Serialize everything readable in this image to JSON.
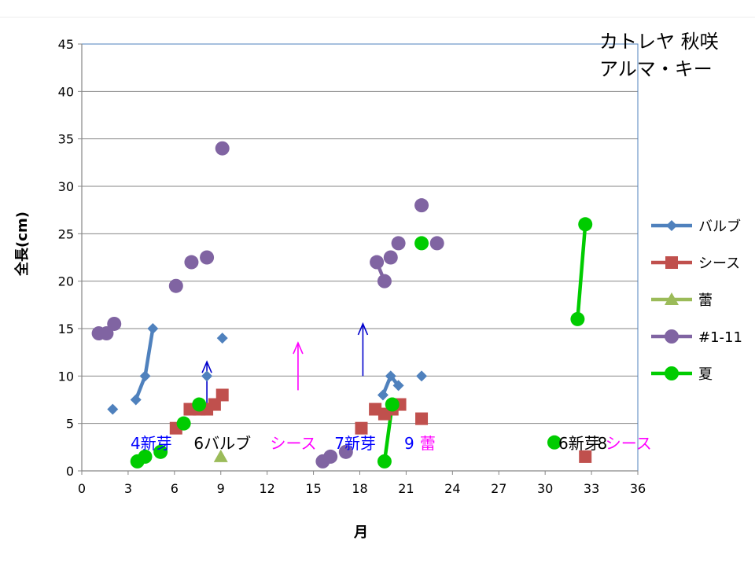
{
  "chart_data": {
    "type": "scatter",
    "title_lines": [
      "カトレヤ  秋咲",
      "アルマ・キー"
    ],
    "xlabel": "月",
    "ylabel": "全長(cm)",
    "xlim": [
      0,
      36
    ],
    "ylim": [
      0,
      45
    ],
    "x_ticks": [
      0,
      3,
      6,
      9,
      12,
      15,
      18,
      21,
      24,
      27,
      30,
      33,
      36
    ],
    "y_ticks": [
      0,
      5,
      10,
      15,
      20,
      25,
      30,
      35,
      40,
      45
    ],
    "grid": "horizontal",
    "legend_position": "right",
    "series": [
      {
        "name": "バルブ",
        "marker": "diamond",
        "color": "#4F81BD",
        "points": [
          [
            2,
            6.5
          ],
          [
            3.5,
            7.5
          ],
          [
            4.1,
            10
          ],
          [
            4.6,
            15
          ],
          [
            8.1,
            10
          ],
          [
            9.1,
            14
          ],
          [
            19.5,
            8
          ],
          [
            20,
            10
          ],
          [
            20.5,
            9
          ],
          [
            22,
            10
          ]
        ],
        "lines": [
          [
            1,
            2,
            3
          ],
          [
            6,
            7,
            8
          ]
        ]
      },
      {
        "name": "シース",
        "marker": "square",
        "color": "#C0504D",
        "points": [
          [
            6.1,
            4.5
          ],
          [
            7,
            6.5
          ],
          [
            7.6,
            6.5
          ],
          [
            8.1,
            6.5
          ],
          [
            8.6,
            7
          ],
          [
            9.1,
            8
          ],
          [
            18.1,
            4.5
          ],
          [
            19,
            6.5
          ],
          [
            19.6,
            6
          ],
          [
            20.1,
            6.5
          ],
          [
            20.6,
            7
          ],
          [
            22,
            5.5
          ],
          [
            32.6,
            1.5
          ]
        ],
        "lines": []
      },
      {
        "name": "蕾",
        "marker": "triangle",
        "color": "#9BBB59",
        "points": [
          [
            9,
            1.5
          ]
        ],
        "lines": []
      },
      {
        "name": "#1-11",
        "marker": "circle",
        "color": "#8064A2",
        "points": [
          [
            1.1,
            14.5
          ],
          [
            1.6,
            14.5
          ],
          [
            2.1,
            15.5
          ],
          [
            6.1,
            19.5
          ],
          [
            7.1,
            22
          ],
          [
            8.1,
            22.5
          ],
          [
            9.1,
            34
          ],
          [
            15.6,
            1
          ],
          [
            16.1,
            1.5
          ],
          [
            17.1,
            2
          ],
          [
            19.1,
            22
          ],
          [
            19.6,
            20
          ],
          [
            20,
            22.5
          ],
          [
            20.5,
            24
          ],
          [
            22,
            28
          ],
          [
            23,
            24
          ]
        ],
        "lines": [
          [
            10,
            11
          ]
        ]
      },
      {
        "name": "夏",
        "marker": "circle",
        "color": "#00CC00",
        "points": [
          [
            3.6,
            1
          ],
          [
            4.1,
            1.5
          ],
          [
            5.1,
            2
          ],
          [
            6.6,
            5
          ],
          [
            7.6,
            7
          ],
          [
            19.6,
            1
          ],
          [
            20.1,
            7
          ],
          [
            22,
            24
          ],
          [
            30.6,
            3
          ],
          [
            32.1,
            16
          ],
          [
            32.6,
            26
          ]
        ],
        "lines": [
          [
            5,
            6
          ],
          [
            9,
            10
          ]
        ]
      }
    ],
    "annotations": [
      {
        "text": "4新芽",
        "x": 4.5,
        "y": 3,
        "color": "#0000FF"
      },
      {
        "text": "6バルブ",
        "x": 9.1,
        "y": 3,
        "color": "#000000"
      },
      {
        "text": "シース",
        "x": 13.7,
        "y": 3,
        "color": "#FF00FF"
      },
      {
        "text": "7新芽",
        "x": 17.7,
        "y": 3,
        "color": "#0000FF"
      },
      {
        "text": "9",
        "x": 21.2,
        "y": 3,
        "color": "#0000FF"
      },
      {
        "text": "蕾",
        "x": 22.4,
        "y": 3,
        "color": "#FF00FF"
      },
      {
        "text": "6新芽",
        "x": 32.2,
        "y": 3,
        "color": "#000000"
      },
      {
        "text": "8",
        "x": 33.7,
        "y": 3,
        "color": "#000000"
      },
      {
        "text": "シース",
        "x": 35.4,
        "y": 3,
        "color": "#FF00FF"
      }
    ],
    "arrows": [
      {
        "x": 8.1,
        "y_from": 6,
        "y_to": 11.5,
        "color": "#0000CC"
      },
      {
        "x": 14,
        "y_from": 8.5,
        "y_to": 13.5,
        "color": "#FF00FF"
      },
      {
        "x": 18.2,
        "y_from": 10,
        "y_to": 15.5,
        "color": "#0000CC"
      }
    ]
  }
}
